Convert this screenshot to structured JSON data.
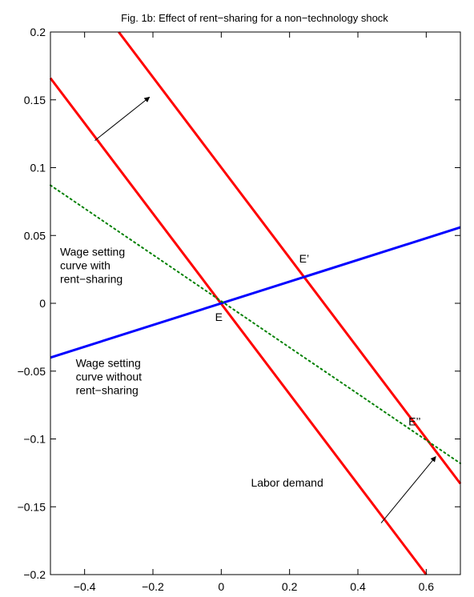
{
  "chart_data": {
    "type": "line",
    "title": "Fig. 1b: Effect of rent−sharing for a non−technology shock",
    "xlabel": "",
    "ylabel": "",
    "xlim": [
      -0.5,
      0.7
    ],
    "ylim": [
      -0.2,
      0.2
    ],
    "grid": false,
    "xticks": [
      -0.4,
      -0.2,
      0,
      0.2,
      0.4,
      0.6
    ],
    "xtick_labels": [
      "−0.4",
      "−0.2",
      "0",
      "0.2",
      "0.4",
      "0.6"
    ],
    "yticks": [
      0.2,
      0.15,
      0.1,
      0.05,
      0,
      -0.05,
      -0.1,
      -0.15,
      -0.2
    ],
    "ytick_labels": [
      "0.2",
      "0.15",
      "0.1",
      "0.05",
      "0",
      "−0.05",
      "−0.1",
      "−0.15",
      "−0.2"
    ],
    "series": [
      {
        "name": "",
        "color": "#ff0000",
        "style": "solid",
        "x": [
          -0.5,
          0.6
        ],
        "y": [
          0.166,
          -0.2
        ]
      },
      {
        "name": "",
        "color": "#ff0000",
        "style": "solid",
        "x": [
          -0.3,
          0.7
        ],
        "y": [
          0.2,
          -0.133
        ]
      },
      {
        "name": "",
        "color": "#0000ff",
        "style": "solid",
        "x": [
          -0.5,
          0.7
        ],
        "y": [
          -0.04,
          0.056
        ]
      },
      {
        "name": "",
        "color": "#008000",
        "style": "dotted",
        "x": [
          -0.5,
          0.7
        ],
        "y": [
          0.087,
          -0.118
        ]
      }
    ],
    "annotations": [
      {
        "text": "E",
        "x": -0.018,
        "y": -0.013
      },
      {
        "text": "E’",
        "x": 0.228,
        "y": 0.03
      },
      {
        "text": "E’’",
        "x": 0.548,
        "y": -0.09
      },
      {
        "text": "Labor demand",
        "x": 0.087,
        "y": -0.135
      }
    ],
    "multiline_labels": [
      {
        "lines": [
          "Wage setting",
          "curve with",
          "rent−sharing"
        ],
        "x": -0.472,
        "y": 0.035
      },
      {
        "lines": [
          "Wage setting",
          "curve without",
          "rent−sharing"
        ],
        "x": -0.426,
        "y": -0.047
      }
    ],
    "arrows": [
      {
        "from": [
          -0.37,
          0.12
        ],
        "to": [
          -0.21,
          0.152
        ]
      },
      {
        "from": [
          0.468,
          -0.162
        ],
        "to": [
          0.628,
          -0.113
        ]
      }
    ]
  }
}
